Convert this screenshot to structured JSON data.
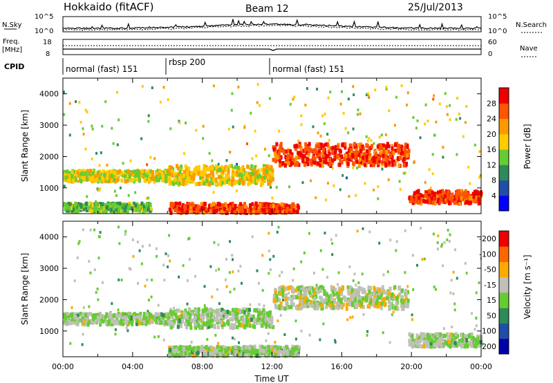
{
  "header": {
    "station": "Hokkaido (fitACF)",
    "beam": "Beam 12",
    "date": "25/Jul/2013"
  },
  "top_panels": {
    "nsky_label": "N.Sky",
    "nsearch_label": "N.Search",
    "nsky_ticks": [
      "10^5",
      "10^0"
    ],
    "freq_label_1": "Freq.",
    "freq_label_2": "[MHz]",
    "freq_ticks": [
      "18",
      "8"
    ],
    "nave_label": "Nave",
    "nave_ticks": [
      "60",
      "0"
    ],
    "cpid_label": "CPID",
    "cpid_segments": [
      {
        "label": "normal (fast) 151",
        "start_hour": 0,
        "end_hour": 6
      },
      {
        "label": "rbsp 200",
        "start_hour": 6,
        "end_hour": 12
      },
      {
        "label": "normal (fast) 151",
        "start_hour": 12,
        "end_hour": 24
      }
    ]
  },
  "chart_data": [
    {
      "type": "heatmap",
      "name": "power",
      "ylabel": "Slant Range [km]",
      "xlabel": "",
      "xlim": [
        0,
        24
      ],
      "ylim": [
        180,
        4500
      ],
      "yticks": [
        1000,
        2000,
        3000,
        4000
      ],
      "colorbar_label": "Power [dB]",
      "colorbar_ticks": [
        "4",
        "8",
        "12",
        "16",
        "20",
        "24",
        "28"
      ],
      "colorbar_colors": [
        "#0000ff",
        "#1f4fa8",
        "#2e8b57",
        "#66cc33",
        "#ffcc00",
        "#ff9900",
        "#ff5500",
        "#ee0000"
      ],
      "bands": [
        {
          "t0": 0,
          "t1": 6,
          "r0": 1200,
          "r1": 1550,
          "level": 0.55
        },
        {
          "t0": 6,
          "t1": 12,
          "r0": 1100,
          "r1": 1700,
          "level": 0.6
        },
        {
          "t0": 12,
          "t1": 19.8,
          "r0": 1700,
          "r1": 2400,
          "level": 0.9
        },
        {
          "t0": 19.8,
          "t1": 24,
          "r0": 500,
          "r1": 900,
          "level": 0.9
        },
        {
          "t0": 6,
          "t1": 13.5,
          "r0": 200,
          "r1": 500,
          "level": 0.9
        },
        {
          "t0": 0,
          "t1": 5,
          "r0": 250,
          "r1": 500,
          "level": 0.4
        }
      ]
    },
    {
      "type": "heatmap",
      "name": "velocity",
      "ylabel": "Slant Range [km]",
      "xlabel": "Time UT",
      "xlim": [
        0,
        24
      ],
      "ylim": [
        180,
        4500
      ],
      "yticks": [
        1000,
        2000,
        3000,
        4000
      ],
      "xticks": [
        "00:00",
        "04:00",
        "08:00",
        "12:00",
        "16:00",
        "20:00",
        "00:00"
      ],
      "colorbar_label": "Velocity [m s⁻¹]",
      "colorbar_ticks": [
        "200",
        "100",
        "50",
        "15",
        "-15",
        "-50",
        "-100",
        "-200"
      ],
      "colorbar_colors": [
        "#0000aa",
        "#1f4fa8",
        "#2e8b57",
        "#66cc33",
        "#c0c0b8",
        "#ffaa00",
        "#ff6600",
        "#ee0000"
      ],
      "bands": [
        {
          "t0": 0,
          "t1": 6,
          "r0": 1200,
          "r1": 1550,
          "level": 0.5
        },
        {
          "t0": 6,
          "t1": 12,
          "r0": 1100,
          "r1": 1700,
          "level": 0.5
        },
        {
          "t0": 12,
          "t1": 19.8,
          "r0": 1700,
          "r1": 2400,
          "level": 0.55
        },
        {
          "t0": 19.8,
          "t1": 24,
          "r0": 500,
          "r1": 900,
          "level": 0.5
        },
        {
          "t0": 6,
          "t1": 13.5,
          "r0": 200,
          "r1": 500,
          "level": 0.5
        }
      ]
    }
  ]
}
